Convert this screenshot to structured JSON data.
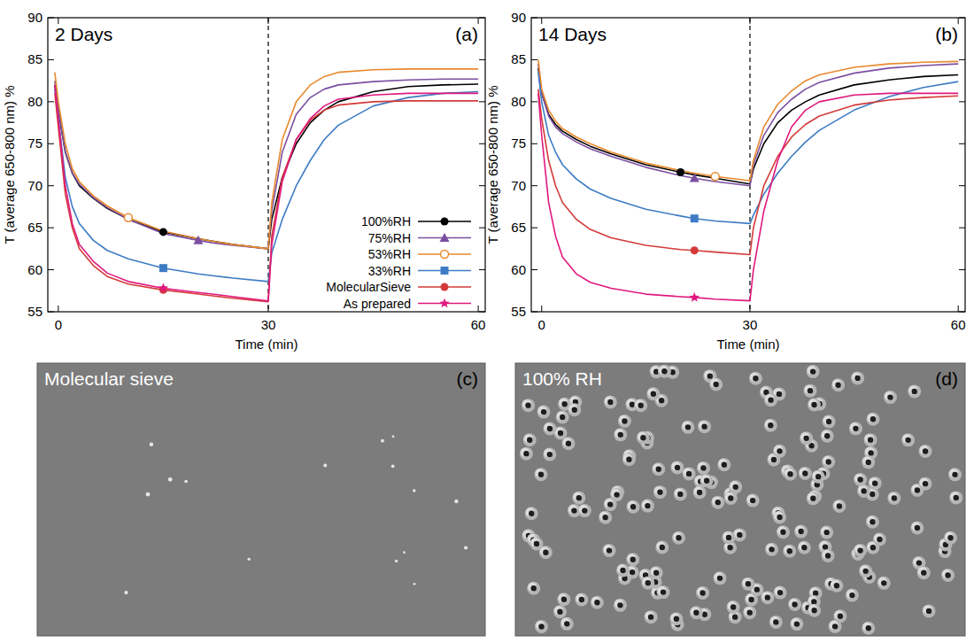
{
  "chart_data": [
    {
      "type": "line",
      "annotation": "2 Days",
      "panel": "(a)",
      "xlabel": "Time (min)",
      "ylabel": "T (average 650-800 nm) %",
      "x": [
        -0.5,
        0,
        1,
        2,
        3,
        5,
        7,
        10,
        15,
        20,
        22,
        25,
        30,
        30.5,
        32,
        34,
        36,
        38,
        40,
        45,
        50,
        55,
        60
      ],
      "xlim": [
        -1.5,
        61
      ],
      "xticks": [
        0,
        30,
        60
      ],
      "ylim": [
        55,
        90
      ],
      "yticks": [
        55,
        60,
        65,
        70,
        75,
        80,
        85,
        90
      ],
      "vline": 30,
      "legend": "right",
      "series": [
        {
          "name": "100%RH",
          "color": "#000000",
          "marker": "circle",
          "values": [
            82,
            79,
            74,
            71.5,
            70,
            68.5,
            67.3,
            66,
            64.5,
            63.7,
            63.4,
            63,
            62.5,
            66,
            71,
            75,
            77.5,
            79,
            80,
            81.2,
            81.8,
            82,
            82.1
          ]
        },
        {
          "name": "75%RH",
          "color": "#7b4fa0",
          "marker": "triangle",
          "values": [
            82.5,
            79,
            74,
            71.5,
            70.2,
            68.6,
            67.4,
            66,
            64.3,
            63.5,
            63.2,
            62.9,
            62.5,
            67,
            74,
            78.5,
            80.5,
            81.5,
            82,
            82.4,
            82.6,
            82.7,
            82.7
          ]
        },
        {
          "name": "53%RH",
          "color": "#e8892e",
          "marker": "open-circle",
          "values": [
            83.5,
            80,
            75,
            72,
            70.5,
            68.8,
            67.6,
            66.2,
            64.6,
            63.7,
            63.4,
            63,
            62.5,
            68,
            75.5,
            80,
            82,
            83,
            83.5,
            83.8,
            83.9,
            83.9,
            83.9
          ]
        },
        {
          "name": "33%RH",
          "color": "#3d7cc4",
          "marker": "square",
          "values": [
            81.5,
            78,
            71,
            67.5,
            65.5,
            63.5,
            62.3,
            61.3,
            60.2,
            59.5,
            59.3,
            59,
            58.6,
            62,
            66,
            70,
            73,
            75.5,
            77.2,
            79.5,
            80.5,
            81,
            81.2
          ]
        },
        {
          "name": "MolecularSieve",
          "color": "#d43a3a",
          "marker": "circle",
          "values": [
            81,
            77,
            69,
            65,
            62.5,
            60.5,
            59.2,
            58.3,
            57.6,
            57.1,
            56.9,
            56.6,
            56.2,
            64,
            71,
            75.5,
            77.8,
            79,
            79.6,
            80,
            80.1,
            80.1,
            80.1
          ]
        },
        {
          "name": "As prepared",
          "color": "#e0187e",
          "marker": "star",
          "values": [
            82,
            78,
            70,
            65.5,
            63,
            61,
            59.6,
            58.6,
            57.8,
            57.3,
            57.1,
            56.8,
            56.3,
            63,
            70.5,
            75.5,
            78,
            79.5,
            80.3,
            80.8,
            81,
            81,
            81
          ]
        }
      ]
    },
    {
      "type": "line",
      "annotation": "14 Days",
      "panel": "(b)",
      "xlabel": "Time (min)",
      "ylabel": "T (average 650-800 nm) %",
      "x": [
        -0.5,
        0,
        1,
        2,
        3,
        5,
        7,
        10,
        15,
        20,
        22,
        25,
        30,
        30.5,
        32,
        34,
        36,
        38,
        40,
        45,
        50,
        55,
        60
      ],
      "xlim": [
        -1.5,
        61
      ],
      "xticks": [
        0,
        30,
        60
      ],
      "ylim": [
        55,
        90
      ],
      "yticks": [
        55,
        60,
        65,
        70,
        75,
        80,
        85,
        90
      ],
      "vline": 30,
      "series": [
        {
          "color": "#000000",
          "marker": "circle",
          "values": [
            84,
            81,
            78.5,
            77.3,
            76.5,
            75.5,
            74.7,
            73.8,
            72.5,
            71.6,
            71.3,
            70.9,
            70.2,
            72,
            75,
            77.5,
            79,
            80,
            80.8,
            82,
            82.6,
            83,
            83.2
          ]
        },
        {
          "color": "#7b4fa0",
          "marker": "triangle",
          "values": [
            84.5,
            81,
            78.3,
            77,
            76.2,
            75.2,
            74.4,
            73.5,
            72.2,
            71.2,
            70.9,
            70.5,
            70,
            72.5,
            76,
            78.7,
            80.3,
            81.5,
            82.3,
            83.4,
            84,
            84.3,
            84.5
          ]
        },
        {
          "color": "#e8892e",
          "marker": "open-circle",
          "values": [
            85,
            81.5,
            79,
            77.7,
            76.8,
            75.8,
            75,
            74,
            72.7,
            71.8,
            71.5,
            71.1,
            70.6,
            73,
            77,
            79.7,
            81.3,
            82.5,
            83.2,
            84.1,
            84.5,
            84.7,
            84.8
          ]
        },
        {
          "color": "#3d7cc4",
          "marker": "square",
          "values": [
            83.5,
            80,
            76,
            74,
            72.5,
            70.8,
            69.6,
            68.5,
            67.2,
            66.4,
            66.1,
            65.8,
            65.5,
            66.5,
            69,
            71.5,
            73.5,
            75.2,
            76.6,
            79,
            80.6,
            81.7,
            82.4
          ]
        },
        {
          "color": "#d43a3a",
          "marker": "circle",
          "values": [
            81.5,
            78,
            73,
            70,
            68,
            66,
            64.8,
            63.8,
            62.9,
            62.4,
            62.3,
            62.1,
            61.8,
            65,
            70,
            73.5,
            75.8,
            77.3,
            78.3,
            79.6,
            80.2,
            80.5,
            80.7
          ]
        },
        {
          "color": "#e0187e",
          "marker": "star",
          "values": [
            81,
            76,
            68,
            64,
            61.5,
            59.5,
            58.5,
            57.8,
            57.1,
            56.8,
            56.7,
            56.5,
            56.3,
            60,
            67,
            73,
            77,
            79,
            80,
            80.8,
            81,
            81,
            81
          ]
        }
      ]
    }
  ],
  "images": [
    {
      "label": "Molecular sieve",
      "panel": "(c)"
    },
    {
      "label": "100% RH",
      "panel": "(d)"
    }
  ]
}
